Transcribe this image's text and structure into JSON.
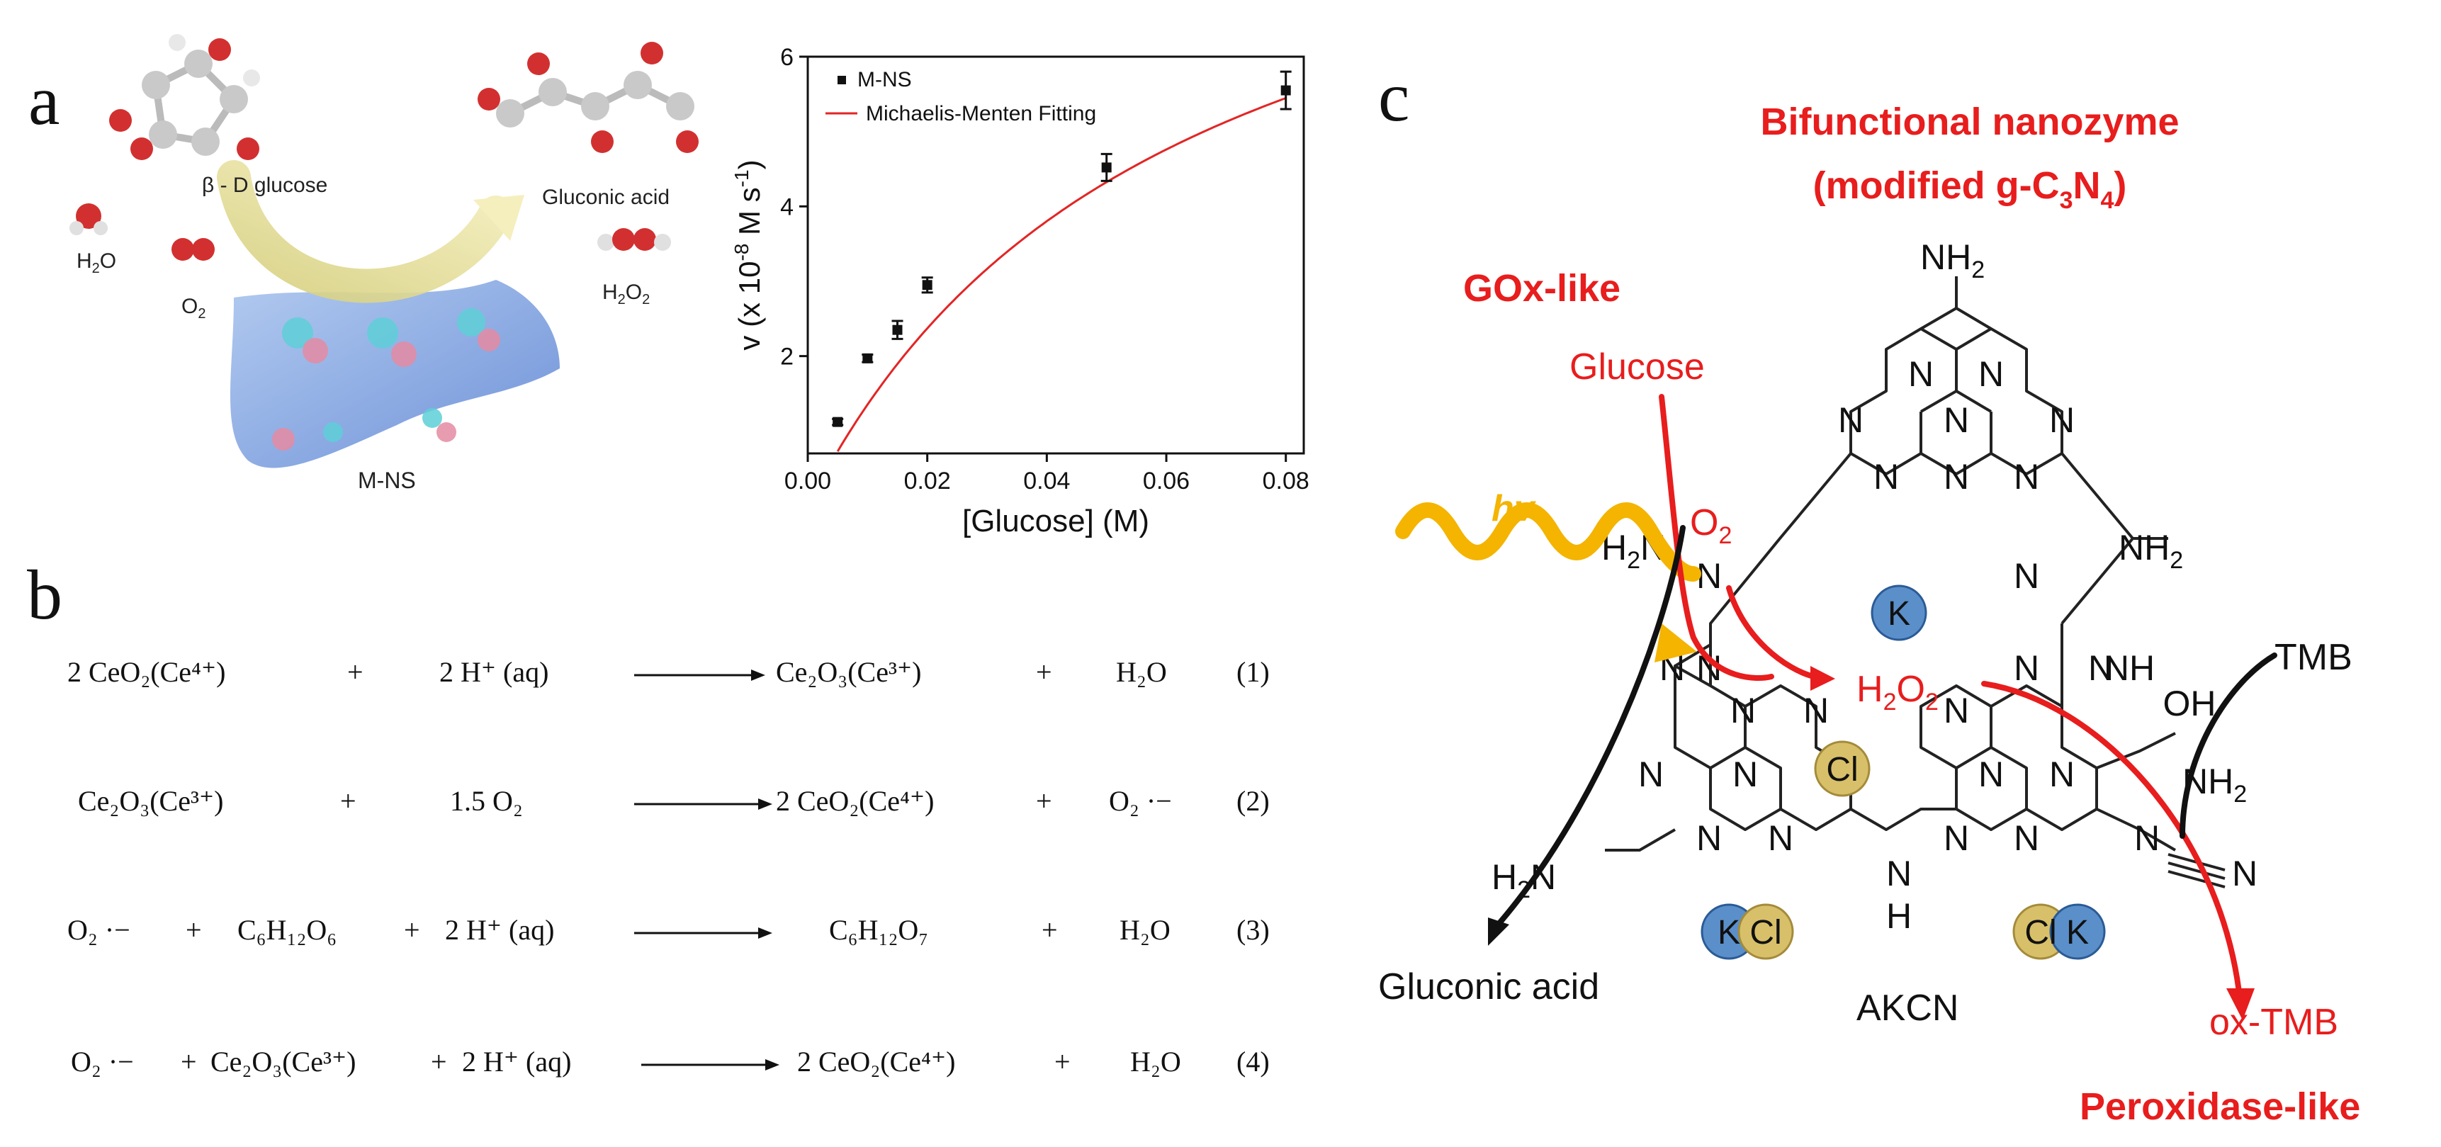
{
  "panel_labels": {
    "a": "a",
    "b": "b",
    "c": "c"
  },
  "panel_a": {
    "glucose_label": "β - D glucose",
    "gluconic_label": "Gluconic acid",
    "h2o": {
      "base": "H",
      "sub": "2",
      "tail": "O"
    },
    "o2": {
      "base": "O",
      "sub": "2"
    },
    "h2o2": {
      "base": "H",
      "sub1": "2",
      "mid": "O",
      "sub2": "2"
    },
    "nanosheet_label": "M-NS"
  },
  "chart_data": {
    "type": "scatter",
    "series": [
      {
        "name": "M-NS",
        "x": [
          0.005,
          0.01,
          0.015,
          0.02,
          0.05,
          0.08
        ],
        "y": [
          1.12,
          1.97,
          2.35,
          2.95,
          4.52,
          5.55
        ],
        "err": [
          0.04,
          0.05,
          0.12,
          0.1,
          0.18,
          0.25
        ],
        "marker": "square",
        "color": "#111111"
      },
      {
        "name": "Michaelis-Menten Fitting",
        "type": "line",
        "vmax": 9.6,
        "km": 0.061,
        "color": "#e32525"
      }
    ],
    "xlabel": "[Glucose] (M)",
    "ylabel": {
      "pre": "v (x 10",
      "exp": "-8",
      "mid": " M s",
      "exp2": "-1",
      "post": ")"
    },
    "xlim": [
      0,
      0.083
    ],
    "ylim": [
      0.7,
      6.0
    ],
    "xticks": [
      0.0,
      0.02,
      0.04,
      0.06,
      0.08
    ],
    "xtick_labels": [
      "0.00",
      "0.02",
      "0.04",
      "0.06",
      "0.08"
    ],
    "yticks": [
      2,
      4,
      6
    ],
    "ytick_labels": [
      "2",
      "4",
      "6"
    ],
    "legend_position": "top-left"
  },
  "panel_b": {
    "equations": [
      {
        "reactants": [
          "2 CeO₂(Ce⁴⁺)",
          "2 H⁺ (aq)"
        ],
        "products": [
          "Ce₂O₃(Ce³⁺)",
          "H₂O"
        ],
        "number": "(1)"
      },
      {
        "reactants": [
          "Ce₂O₃(Ce³⁺)",
          "1.5 O₂"
        ],
        "products": [
          "2 CeO₂(Ce⁴⁺)",
          "O₂ ·−"
        ],
        "number": "(2)"
      },
      {
        "reactants": [
          "O₂ ·−",
          "C₆H₁₂O₆",
          "2 H⁺ (aq)"
        ],
        "products": [
          "C₆H₁₂O₇",
          "H₂O"
        ],
        "number": "(3)"
      },
      {
        "reactants": [
          "O₂ ·−",
          "Ce₂O₃(Ce³⁺)",
          "2 H⁺ (aq)"
        ],
        "products": [
          "2 CeO₂(Ce⁴⁺)",
          "H₂O"
        ],
        "number": "(4)"
      }
    ],
    "plus": "+"
  },
  "panel_c": {
    "title_line1": "Bifunctional nanozyme",
    "title_line2": {
      "pre": "(modified g-C",
      "sub1": "3",
      "mid": "N",
      "sub2": "4",
      "post": ")"
    },
    "gox_label": "GOx-like",
    "glucose": "Glucose",
    "hv": "hv",
    "o2": {
      "base": "O",
      "sub": "2"
    },
    "h2o2": {
      "base": "H",
      "sub1": "2",
      "mid": "O",
      "sub2": "2"
    },
    "tmb": "TMB",
    "ox_tmb": "ox-TMB",
    "gluconic": "Gluconic acid",
    "akcn": "AKCN",
    "peroxidase_label": "Peroxidase-like",
    "nh2": {
      "base": "NH",
      "sub": "2"
    },
    "h2n": {
      "base": "H",
      "sub": "2",
      "tail": "N"
    },
    "n": "N",
    "h": "H",
    "nh": "NH",
    "oh": "OH",
    "k": "K",
    "cl": "Cl",
    "colors": {
      "red": "#e81d1d",
      "k_ball": "#5a8fca",
      "cl_ball": "#d8c06a"
    }
  }
}
